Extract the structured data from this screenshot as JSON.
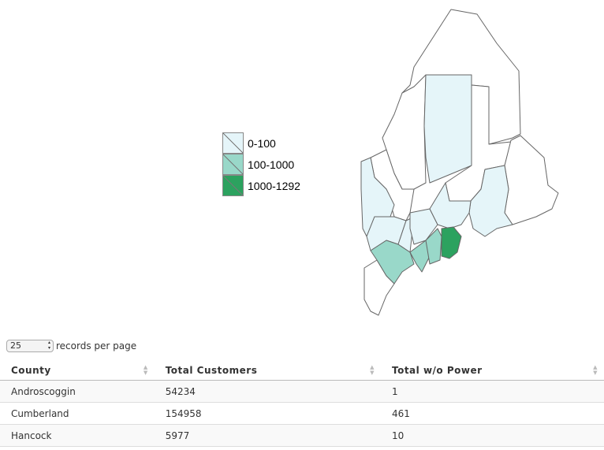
{
  "legend": {
    "items": [
      {
        "label": "0-100",
        "color": "#e5f5f9"
      },
      {
        "label": "100-1000",
        "color": "#99d8c9"
      },
      {
        "label": "1000-1292",
        "color": "#2ca25f"
      }
    ]
  },
  "page_length": {
    "selected": "25",
    "label": "records per page"
  },
  "table": {
    "headers": [
      "County",
      "Total Customers",
      "Total w/o Power"
    ],
    "rows": [
      [
        "Androscoggin",
        54234,
        1
      ],
      [
        "Cumberland",
        154958,
        461
      ],
      [
        "Hancock",
        5977,
        10
      ]
    ]
  }
}
